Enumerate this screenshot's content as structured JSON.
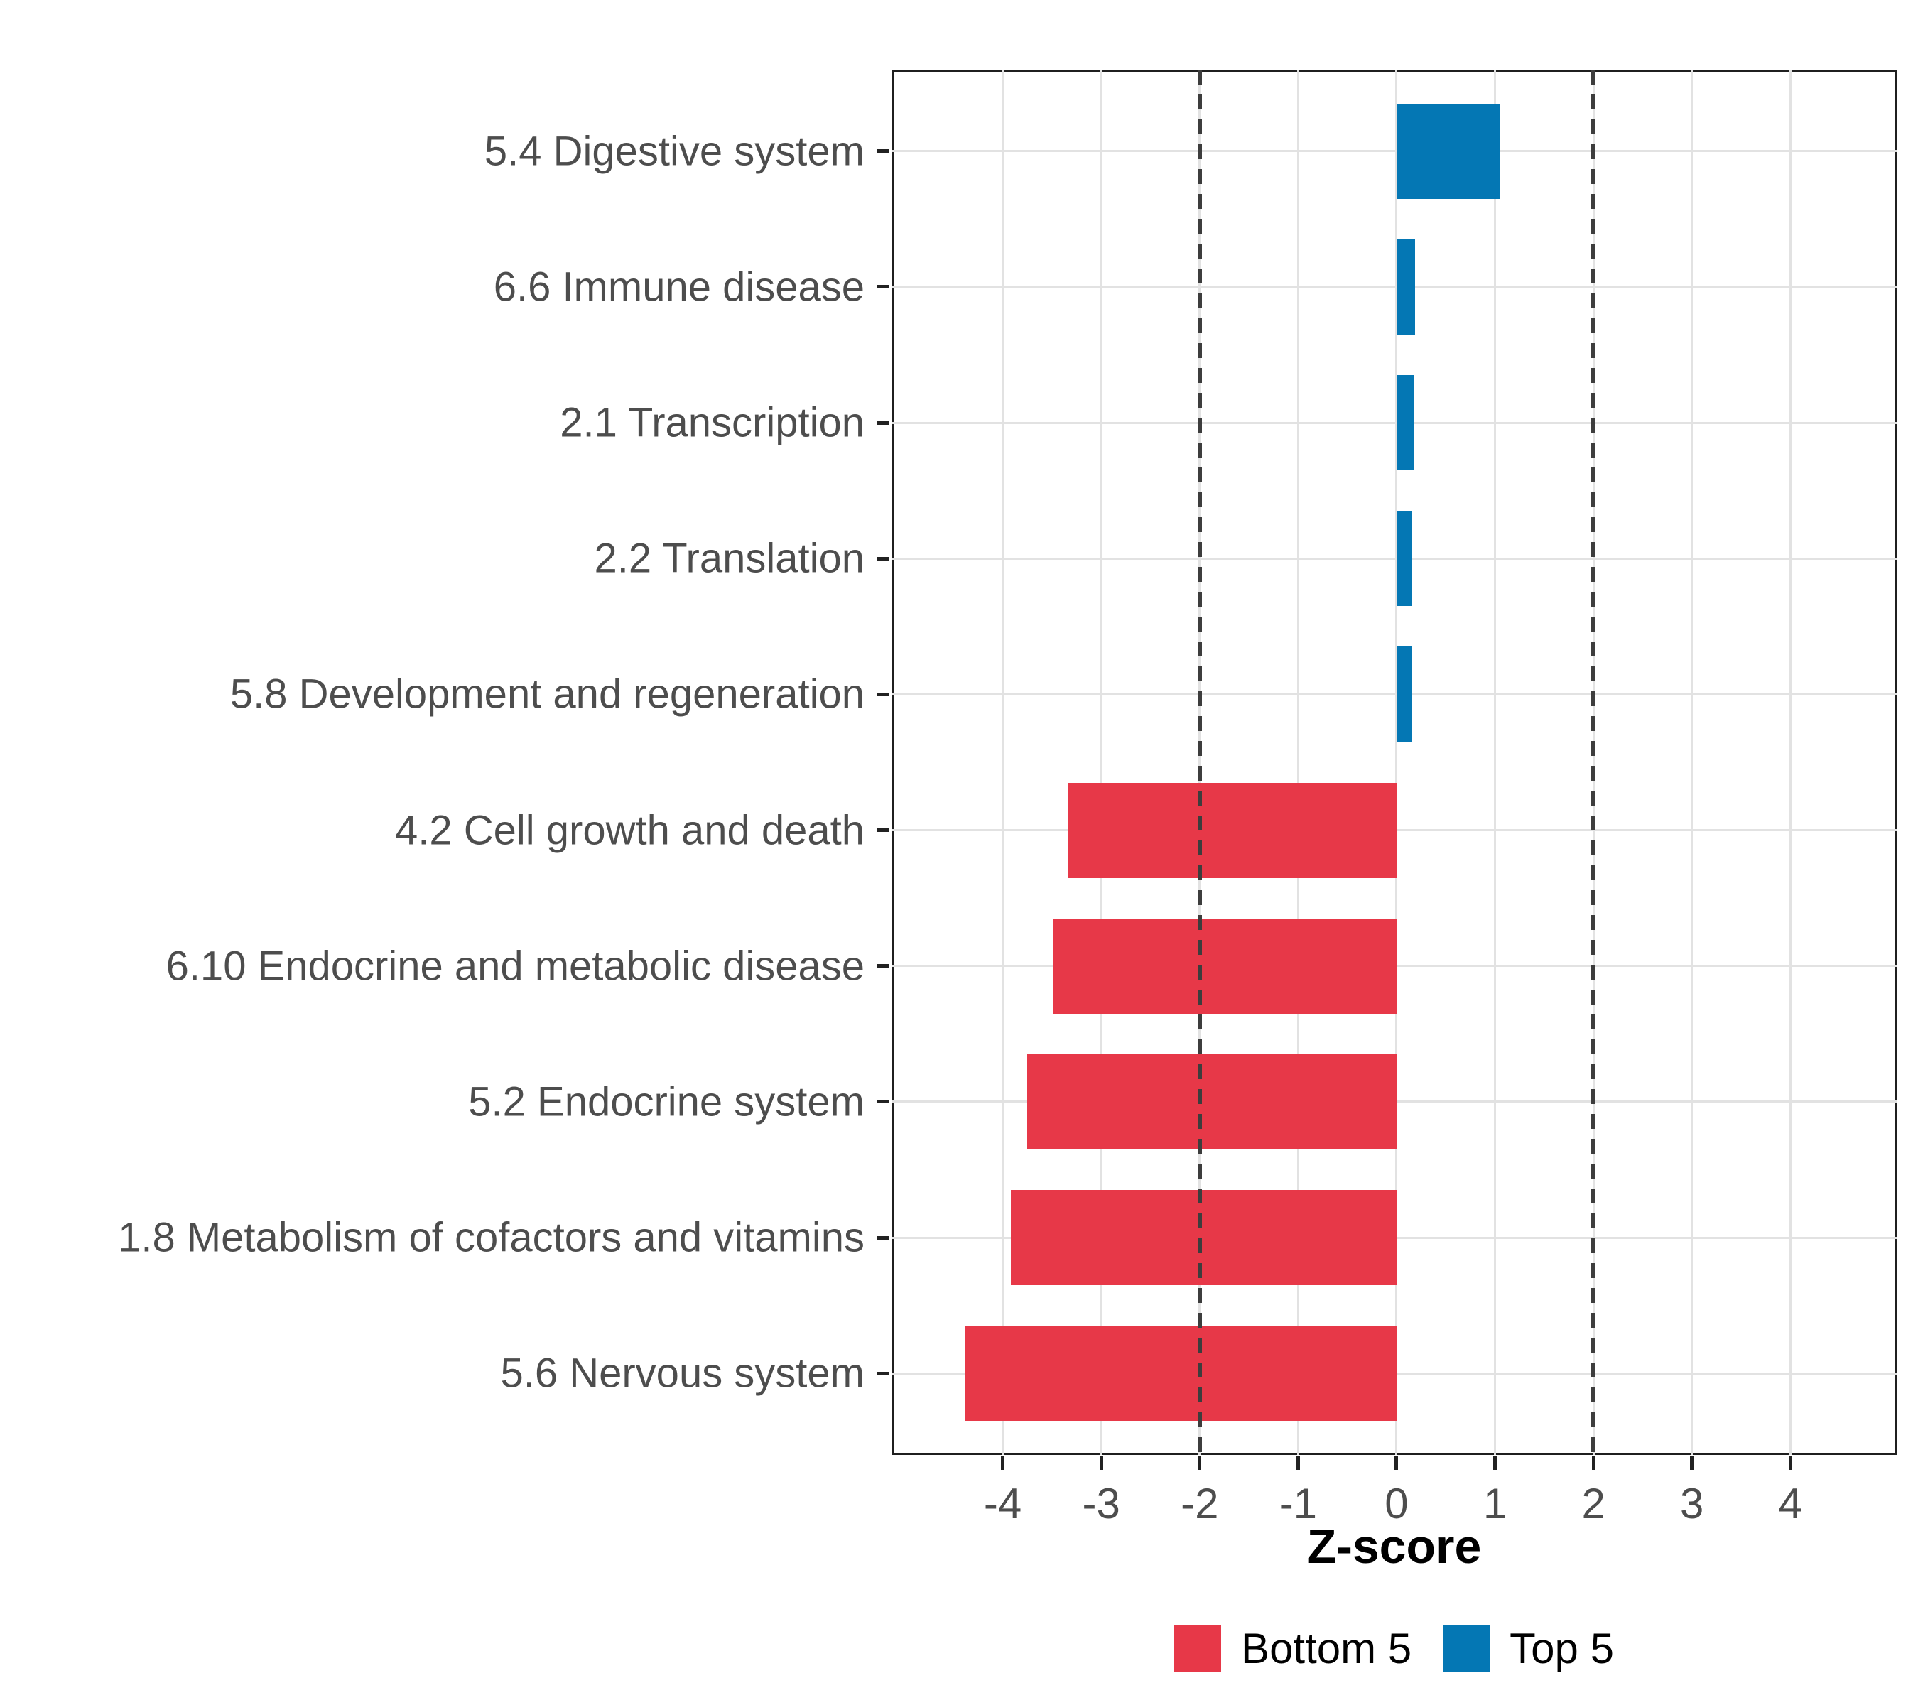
{
  "chart_data": {
    "type": "bar",
    "orientation": "horizontal",
    "title": "",
    "xlabel": "Z-score",
    "categories": [
      "5.4 Digestive system",
      "6.6 Immune disease",
      "2.1 Transcription",
      "2.2 Translation",
      "5.8 Development and regeneration",
      "4.2 Cell growth and death",
      "6.10 Endocrine and metabolic disease",
      "5.2 Endocrine system",
      "1.8 Metabolism of cofactors and vitamins",
      "5.6 Nervous system"
    ],
    "values": [
      1.05,
      0.19,
      0.17,
      0.16,
      0.15,
      -3.34,
      -3.49,
      -3.75,
      -3.92,
      -4.38
    ],
    "groups": [
      "Top 5",
      "Top 5",
      "Top 5",
      "Top 5",
      "Top 5",
      "Bottom 5",
      "Bottom 5",
      "Bottom 5",
      "Bottom 5",
      "Bottom 5"
    ],
    "bar_colors": {
      "Top 5": "#0477B4",
      "Bottom 5": "#E73848"
    },
    "xlim": [
      -5.13,
      5.08
    ],
    "xticks": [
      -4,
      -3,
      -2,
      -1,
      0,
      1,
      2,
      3,
      4
    ],
    "xtick_labels": [
      "-4",
      "-3",
      "-2",
      "-1",
      "0",
      "1",
      "2",
      "3",
      "4"
    ],
    "reference_lines": [
      -2,
      2
    ],
    "reference_line_style": "dashed",
    "reference_line_color": "#3D3D3D",
    "grid": true,
    "gridline_color": "#E2E2E2",
    "axis_text_color": "#4D4D4D",
    "legend_position": "bottom",
    "legend": [
      {
        "label": "Bottom 5",
        "color": "#E73848"
      },
      {
        "label": "Top 5",
        "color": "#0477B4"
      }
    ]
  }
}
